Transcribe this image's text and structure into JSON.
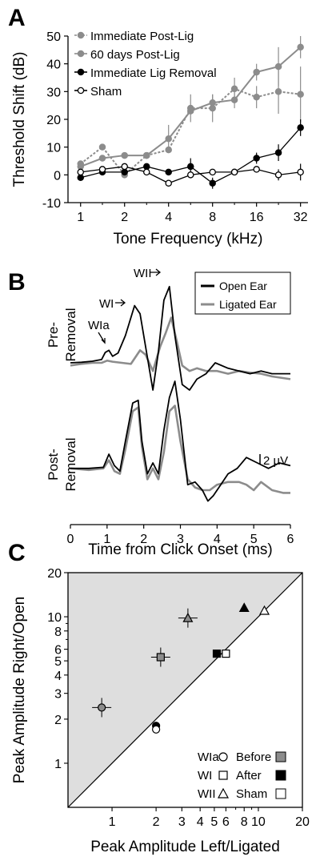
{
  "chart_data": [
    {
      "panel": "A",
      "type": "line",
      "xlabel": "Tone Frequency (kHz)",
      "ylabel": "Threshold Shift (dB)",
      "xscale": "log2",
      "xlim": [
        0.82,
        36
      ],
      "ylim": [
        -10,
        50
      ],
      "xticks": [
        1,
        2,
        4,
        8,
        16,
        32
      ],
      "yticks": [
        -10,
        0,
        10,
        20,
        30,
        40,
        50
      ],
      "legend_position": "top-left",
      "series": [
        {
          "name": "Immediate Post-Lig",
          "color": "#8c8c8c",
          "dashed": true,
          "marker": "filled-gray",
          "x": [
            1,
            1.41,
            2,
            2.83,
            4,
            5.66,
            8,
            11.3,
            16,
            22.6,
            32
          ],
          "y": [
            4,
            10,
            0,
            7,
            9,
            24,
            24,
            31,
            28,
            30,
            29
          ],
          "err": [
            0,
            0,
            0,
            0,
            0,
            5,
            5,
            4,
            4,
            8,
            10
          ]
        },
        {
          "name": "60 days Post-Lig",
          "color": "#8c8c8c",
          "dashed": false,
          "marker": "filled-gray",
          "x": [
            1,
            1.41,
            2,
            2.83,
            4,
            5.66,
            8,
            11.3,
            16,
            22.6,
            32
          ],
          "y": [
            3,
            6,
            7,
            7,
            13,
            23,
            26,
            27,
            37,
            39,
            46
          ],
          "err": [
            0,
            0,
            0,
            0,
            5,
            0,
            3,
            3,
            3,
            7,
            4
          ]
        },
        {
          "name": "Immediate Lig Removal",
          "color": "#000000",
          "dashed": false,
          "marker": "filled-black",
          "x": [
            1,
            1.41,
            2,
            2.83,
            4,
            5.66,
            8,
            11.3,
            16,
            22.6,
            32
          ],
          "y": [
            -1,
            1,
            1,
            3,
            1,
            3,
            -3,
            1,
            6,
            8,
            17
          ],
          "err": [
            0,
            0,
            0,
            0,
            0,
            3,
            2,
            0,
            2,
            3,
            3
          ]
        },
        {
          "name": "Sham",
          "color": "#000000",
          "dashed": false,
          "marker": "open",
          "x": [
            1,
            1.41,
            2,
            2.83,
            4,
            5.66,
            8,
            11.3,
            16,
            22.6,
            32
          ],
          "y": [
            1,
            2,
            3,
            1,
            -3,
            0,
            1,
            1,
            2,
            0,
            1
          ],
          "err": [
            0,
            0,
            0,
            0,
            0,
            0,
            0,
            0,
            0,
            2,
            3
          ]
        }
      ]
    },
    {
      "panel": "B",
      "type": "line",
      "xlabel": "Time from Click Onset (ms)",
      "xlim": [
        0,
        6
      ],
      "xticks": [
        0,
        1,
        2,
        3,
        4,
        5,
        6
      ],
      "scale_bar_label": "2 µV",
      "wave_labels": [
        "WIa",
        "WI",
        "WII"
      ],
      "row_labels": [
        "Pre-Removal",
        "Post-Removal"
      ],
      "legend_position": "top-right",
      "series": [
        {
          "name": "Open Ear",
          "color": "#000000",
          "rows": {
            "pre": {
              "t": [
                0,
                0.3,
                0.6,
                0.85,
                0.95,
                1.05,
                1.15,
                1.3,
                1.5,
                1.75,
                1.9,
                2.05,
                2.25,
                2.4,
                2.55,
                2.7,
                2.85,
                3.05,
                3.25,
                3.45,
                3.7,
                3.95,
                4.3,
                4.6,
                4.9,
                5.2,
                5.5,
                6
              ],
              "v": [
                0,
                0.1,
                0.3,
                0.6,
                1.9,
                2.3,
                1.2,
                1.8,
                5,
                10.5,
                9,
                3,
                -5,
                2,
                11.5,
                14,
                5,
                -4,
                -5,
                -3,
                -2,
                0,
                -1,
                -1.5,
                -2,
                -1.5,
                -2,
                -2
              ]
            },
            "post": {
              "t": [
                0,
                0.5,
                0.9,
                1.05,
                1.2,
                1.35,
                1.5,
                1.7,
                1.85,
                1.95,
                2.1,
                2.25,
                2.4,
                2.55,
                2.7,
                2.85,
                3.0,
                3.2,
                3.4,
                3.6,
                3.75,
                3.9,
                4.1,
                4.3,
                4.55,
                4.8,
                5.1,
                5.4,
                5.7,
                6
              ],
              "v": [
                -1,
                -1,
                -0.8,
                1.6,
                -0.5,
                -1.5,
                4,
                11,
                11.5,
                4,
                -2,
                0,
                -2,
                6,
                12,
                15,
                8,
                -4,
                -3.5,
                -5,
                -7,
                -6,
                -4,
                -2,
                -1,
                1,
                0,
                -1,
                0,
                -0.5
              ]
            }
          }
        },
        {
          "name": "Ligated Ear",
          "color": "#8c8c8c",
          "rows": {
            "pre": {
              "t": [
                0,
                0.3,
                0.6,
                0.85,
                1.0,
                1.15,
                1.4,
                1.65,
                1.9,
                2.05,
                2.25,
                2.45,
                2.6,
                2.75,
                2.9,
                3.05,
                3.25,
                3.45,
                3.7,
                4.0,
                4.3,
                4.6,
                4.9,
                5.2,
                5.5,
                6
              ],
              "v": [
                -0.5,
                -0.2,
                0,
                0,
                0.4,
                0.2,
                0,
                -0.2,
                2.3,
                1.5,
                -1.5,
                3,
                5.5,
                8.3,
                4,
                -0.5,
                -1.5,
                -1,
                -1.5,
                -1.5,
                -2,
                -1.5,
                -1.8,
                -2,
                -2.5,
                -3
              ]
            },
            "post": {
              "t": [
                0,
                0.5,
                0.9,
                1.05,
                1.2,
                1.35,
                1.5,
                1.7,
                1.85,
                1.95,
                2.1,
                2.25,
                2.4,
                2.55,
                2.7,
                2.85,
                3.0,
                3.2,
                3.4,
                3.6,
                3.8,
                4.0,
                4.3,
                4.6,
                4.8,
                5.0,
                5.2,
                5.5,
                5.8,
                6
              ],
              "v": [
                -1,
                -1.3,
                -1,
                0.5,
                -1.5,
                -2,
                2.5,
                9.5,
                10.2,
                3,
                -3,
                -1,
                -3,
                2,
                9.5,
                10.5,
                4,
                -3,
                -4.5,
                -5,
                -5,
                -4,
                -3.5,
                -3.5,
                -4,
                -5,
                -3.5,
                -5,
                -5.5,
                -5.5
              ]
            }
          }
        }
      ]
    },
    {
      "panel": "C",
      "type": "scatter",
      "xlabel": "Peak Amplitude Left/Ligated",
      "ylabel": "Peak Amplitude Right/Open",
      "xscale": "log",
      "yscale": "log",
      "xlim": [
        0.5,
        20
      ],
      "ylim": [
        0.5,
        20
      ],
      "ticks": [
        1,
        2,
        3,
        4,
        5,
        6,
        8,
        10,
        20
      ],
      "identity_line": true,
      "shaded_region": "above identity line",
      "points": [
        {
          "wave": "WIa",
          "condition": "Before",
          "x": 0.85,
          "y": 2.4
        },
        {
          "wave": "WI",
          "condition": "Before",
          "x": 2.15,
          "y": 5.3
        },
        {
          "wave": "WII",
          "condition": "Before",
          "x": 3.3,
          "y": 9.8
        },
        {
          "wave": "WIa",
          "condition": "After",
          "x": 2.0,
          "y": 1.8
        },
        {
          "wave": "WI",
          "condition": "After",
          "x": 5.2,
          "y": 5.6
        },
        {
          "wave": "WII",
          "condition": "After",
          "x": 8.0,
          "y": 11.5
        },
        {
          "wave": "WIa",
          "condition": "Sham",
          "x": 2.0,
          "y": 1.7
        },
        {
          "wave": "WI",
          "condition": "Sham",
          "x": 6.0,
          "y": 5.6
        },
        {
          "wave": "WII",
          "condition": "Sham",
          "x": 11.0,
          "y": 11.0
        }
      ],
      "legend_position": "bottom-right",
      "legend_shapes": [
        {
          "label": "WIa",
          "shape": "circle"
        },
        {
          "label": "WI",
          "shape": "square"
        },
        {
          "label": "WII",
          "shape": "triangle"
        }
      ],
      "legend_conditions": [
        {
          "label": "Before",
          "fill": "#8c8c8c"
        },
        {
          "label": "After",
          "fill": "#000000"
        },
        {
          "label": "Sham",
          "fill": "#ffffff"
        }
      ]
    }
  ],
  "panel_labels": [
    "A",
    "B",
    "C"
  ]
}
